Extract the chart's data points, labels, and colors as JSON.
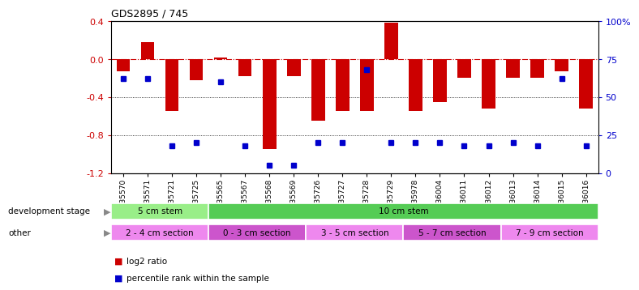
{
  "title": "GDS2895 / 745",
  "samples": [
    "GSM35570",
    "GSM35571",
    "GSM35721",
    "GSM35725",
    "GSM35565",
    "GSM35567",
    "GSM35568",
    "GSM35569",
    "GSM35726",
    "GSM35727",
    "GSM35728",
    "GSM35729",
    "GSM35978",
    "GSM36004",
    "GSM36011",
    "GSM36012",
    "GSM36013",
    "GSM36014",
    "GSM36015",
    "GSM36016"
  ],
  "log2_ratio": [
    -0.13,
    0.18,
    -0.55,
    -0.22,
    0.02,
    -0.18,
    -0.95,
    -0.18,
    -0.65,
    -0.55,
    -0.55,
    0.38,
    -0.55,
    -0.45,
    -0.2,
    -0.52,
    -0.2,
    -0.2,
    -0.13,
    -0.52
  ],
  "percentile_pct": [
    62,
    62,
    18,
    20,
    60,
    18,
    5,
    5,
    20,
    20,
    68,
    20,
    20,
    20,
    18,
    18,
    20,
    18,
    62,
    18
  ],
  "bar_color": "#cc0000",
  "dot_color": "#0000cc",
  "ylim_left": [
    -1.2,
    0.4
  ],
  "ylim_right": [
    0,
    100
  ],
  "dev_stage_groups": [
    {
      "label": "5 cm stem",
      "start": 0,
      "end": 4,
      "color": "#99ee88"
    },
    {
      "label": "10 cm stem",
      "start": 4,
      "end": 20,
      "color": "#55cc55"
    }
  ],
  "other_groups": [
    {
      "label": "2 - 4 cm section",
      "start": 0,
      "end": 4,
      "color": "#ee88ee"
    },
    {
      "label": "0 - 3 cm section",
      "start": 4,
      "end": 8,
      "color": "#cc55cc"
    },
    {
      "label": "3 - 5 cm section",
      "start": 8,
      "end": 12,
      "color": "#ee88ee"
    },
    {
      "label": "5 - 7 cm section",
      "start": 12,
      "end": 16,
      "color": "#cc55cc"
    },
    {
      "label": "7 - 9 cm section",
      "start": 16,
      "end": 20,
      "color": "#ee88ee"
    }
  ],
  "legend_red_label": "log2 ratio",
  "legend_blue_label": "percentile rank within the sample"
}
